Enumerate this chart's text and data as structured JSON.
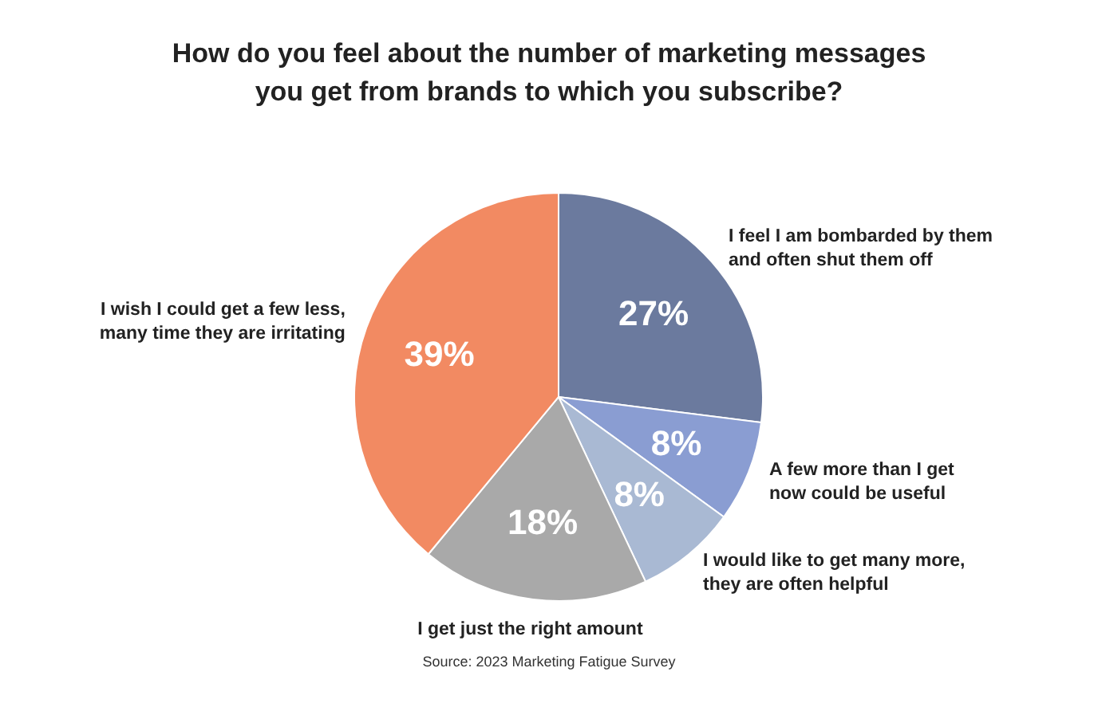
{
  "chart_data": {
    "type": "pie",
    "title": "How do you feel about the number of marketing messages\nyou get from brands to which you subscribe?",
    "categories": [
      "I feel I am bombarded by them\nand often shut them off",
      "A few more than I get\nnow could be useful",
      "I would like to get many more,\nthey are often helpful",
      "I get just the right amount",
      "I wish I could get a few less,\nmany time they are irritating"
    ],
    "values": [
      27,
      8,
      8,
      18,
      39
    ],
    "value_labels": [
      "27%",
      "8%",
      "8%",
      "18%",
      "39%"
    ],
    "colors": [
      "#6b7a9e",
      "#8a9dd2",
      "#a9b9d3",
      "#a9a9a9",
      "#f28a62"
    ],
    "annotations": [
      "Source: 2023 Marketing Fatigue Survey"
    ]
  }
}
